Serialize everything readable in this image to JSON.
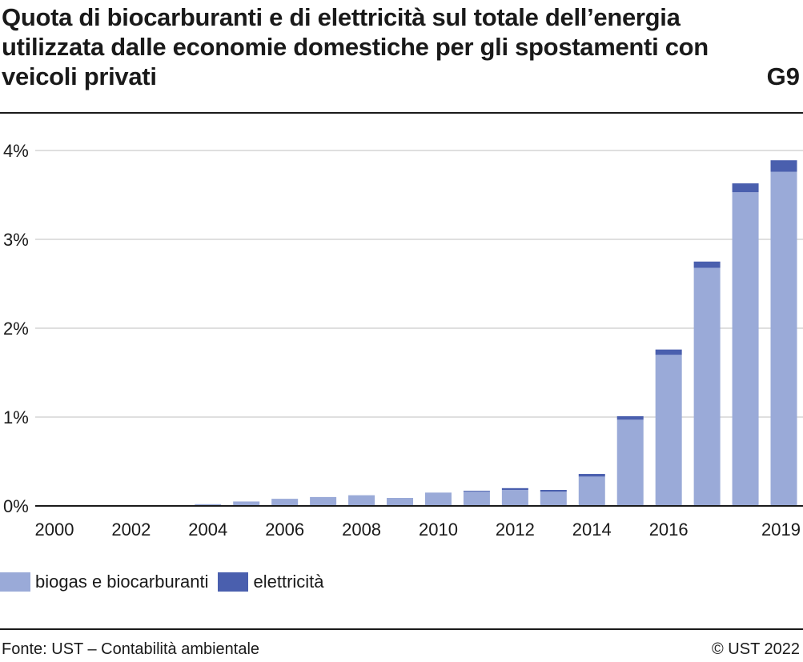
{
  "header": {
    "title": "Quota di biocarburanti e di elettricità sul totale dell’energia utilizzata dalle economie domestiche per gli spostamenti con veicoli privati",
    "code": "G9"
  },
  "footer": {
    "source": "Fonte: UST – Contabilità ambientale",
    "copyright": "© UST 2022"
  },
  "colors": {
    "biogas": "#9aaad8",
    "elettricita": "#4a5fae",
    "grid": "#cccccc",
    "axis": "#1a1a1a"
  },
  "chart_data": {
    "type": "bar",
    "stacked": true,
    "categories": [
      "2000",
      "2001",
      "2002",
      "2003",
      "2004",
      "2005",
      "2006",
      "2007",
      "2008",
      "2009",
      "2010",
      "2011",
      "2012",
      "2013",
      "2014",
      "2015",
      "2016",
      "2017",
      "2018",
      "2019"
    ],
    "x_tick_labels": [
      "2000",
      "",
      "2002",
      "",
      "2004",
      "",
      "2006",
      "",
      "2008",
      "",
      "2010",
      "",
      "2012",
      "",
      "2014",
      "",
      "2016",
      "",
      "",
      "2019"
    ],
    "series": [
      {
        "name": "biogas e biocarburanti",
        "color": "#9aaad8",
        "values": [
          0.01,
          0.01,
          0.01,
          0.01,
          0.02,
          0.05,
          0.08,
          0.1,
          0.12,
          0.09,
          0.15,
          0.16,
          0.18,
          0.16,
          0.33,
          0.97,
          1.7,
          2.68,
          3.53,
          3.76
        ]
      },
      {
        "name": "elettricità",
        "color": "#4a5fae",
        "values": [
          0.0,
          0.0,
          0.0,
          0.0,
          0.0,
          0.0,
          0.0,
          0.0,
          0.0,
          0.0,
          0.0,
          0.01,
          0.02,
          0.02,
          0.03,
          0.04,
          0.06,
          0.07,
          0.1,
          0.13
        ]
      }
    ],
    "ylim": [
      0,
      4
    ],
    "yticks": [
      0,
      1,
      2,
      3,
      4
    ],
    "ytick_labels": [
      "0%",
      "1%",
      "2%",
      "3%",
      "4%"
    ],
    "grid": true,
    "legend_position": "bottom-left",
    "xlabel": "",
    "ylabel": ""
  }
}
